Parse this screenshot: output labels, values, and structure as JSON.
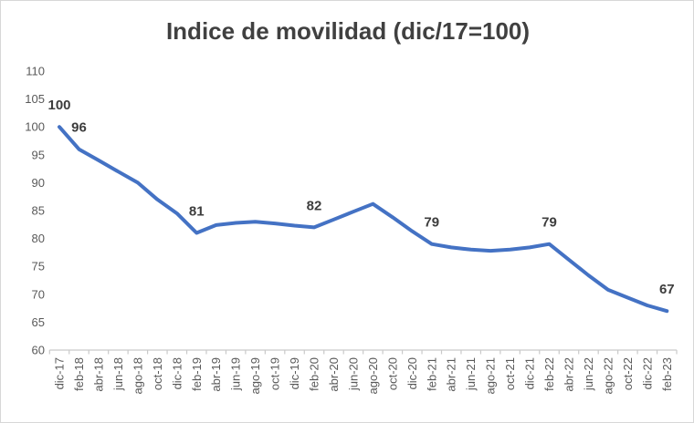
{
  "title": "Indice de movilidad (dic/17=100)",
  "colors": {
    "line": "#4472C4",
    "title_text": "#404040",
    "axis_text": "#595959",
    "data_label_text": "#3d3d3d",
    "axis_line": "#c9c9c9",
    "border": "#d7d7d7",
    "background": "#ffffff"
  },
  "chart_data": {
    "type": "line",
    "title": "Indice de movilidad (dic/17=100)",
    "xlabel": "",
    "ylabel": "",
    "ylim": [
      60,
      110
    ],
    "y_tick_step": 5,
    "y_ticks": [
      60,
      65,
      70,
      75,
      80,
      85,
      90,
      95,
      100,
      105,
      110
    ],
    "grid": false,
    "legend": false,
    "x_label_rotation": "vertical-bottom-to-top",
    "categories": [
      "dic-17",
      "feb-18",
      "abr-18",
      "jun-18",
      "ago-18",
      "oct-18",
      "dic-18",
      "feb-19",
      "abr-19",
      "jun-19",
      "ago-19",
      "oct-19",
      "dic-19",
      "feb-20",
      "abr-20",
      "jun-20",
      "ago-20",
      "oct-20",
      "dic-20",
      "feb-21",
      "abr-21",
      "jun-21",
      "ago-21",
      "oct-21",
      "dic-21",
      "feb-22",
      "abr-22",
      "jun-22",
      "ago-22",
      "oct-22",
      "dic-22",
      "feb-23"
    ],
    "series": [
      {
        "name": "Indice de movilidad",
        "values": [
          100,
          96,
          94,
          92,
          90,
          87,
          84.5,
          81,
          82.4,
          82.8,
          83,
          82.7,
          82.3,
          82,
          83.4,
          84.8,
          86.2,
          83.8,
          81.3,
          79,
          78.4,
          78,
          77.8,
          78,
          78.4,
          79,
          76.2,
          73.4,
          70.8,
          69.4,
          68,
          67
        ]
      }
    ],
    "data_labels": {
      "0": "100",
      "1": "96",
      "7": "81",
      "13": "82",
      "19": "79",
      "25": "79",
      "31": "67"
    }
  }
}
